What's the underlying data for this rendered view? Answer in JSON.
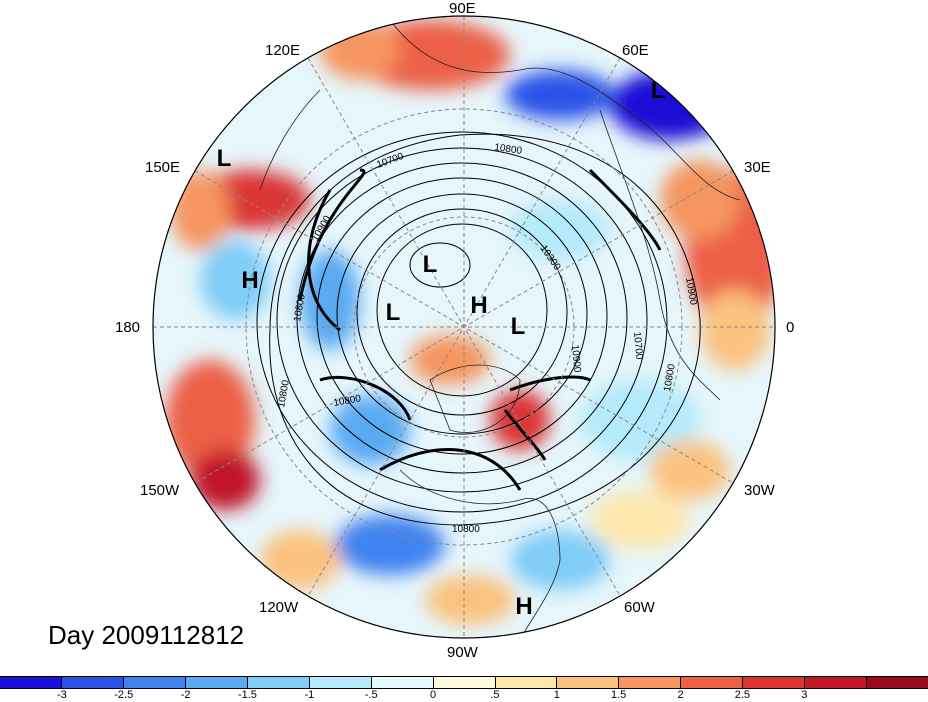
{
  "title": "Day 2009112812",
  "lon_labels": {
    "l90e": "90E",
    "l120e": "120E",
    "l60e": "60E",
    "l150e": "150E",
    "l30e": "30E",
    "l180": "180",
    "l0": "0",
    "l150w": "150W",
    "l30w": "30W",
    "l120w": "120W",
    "l60w": "60W",
    "l90w": "90W"
  },
  "pressure_centers": [
    "L",
    "L",
    "L",
    "L",
    "L",
    "H",
    "H",
    "H"
  ],
  "contour_labels": [
    "10800",
    "10700",
    "10900",
    "10300",
    "10900",
    "10700",
    "10800",
    "10800",
    "10900",
    "10800",
    "10800",
    "10800"
  ],
  "colorbar": {
    "colors": [
      "#1a0fd6",
      "#2a52e8",
      "#3f82ef",
      "#5aaaf2",
      "#80cdf7",
      "#b4eafb",
      "#e4fafd",
      "#fdf9dc",
      "#fde7ad",
      "#fbc27f",
      "#f59660",
      "#ec6146",
      "#dc3534",
      "#c01829",
      "#9a0a1f"
    ],
    "labels": [
      "-3",
      "-2.5",
      "-2",
      "-1.5",
      "-1",
      "-.5",
      "0",
      ".5",
      "1",
      "1.5",
      "2",
      "2.5",
      "3"
    ]
  }
}
